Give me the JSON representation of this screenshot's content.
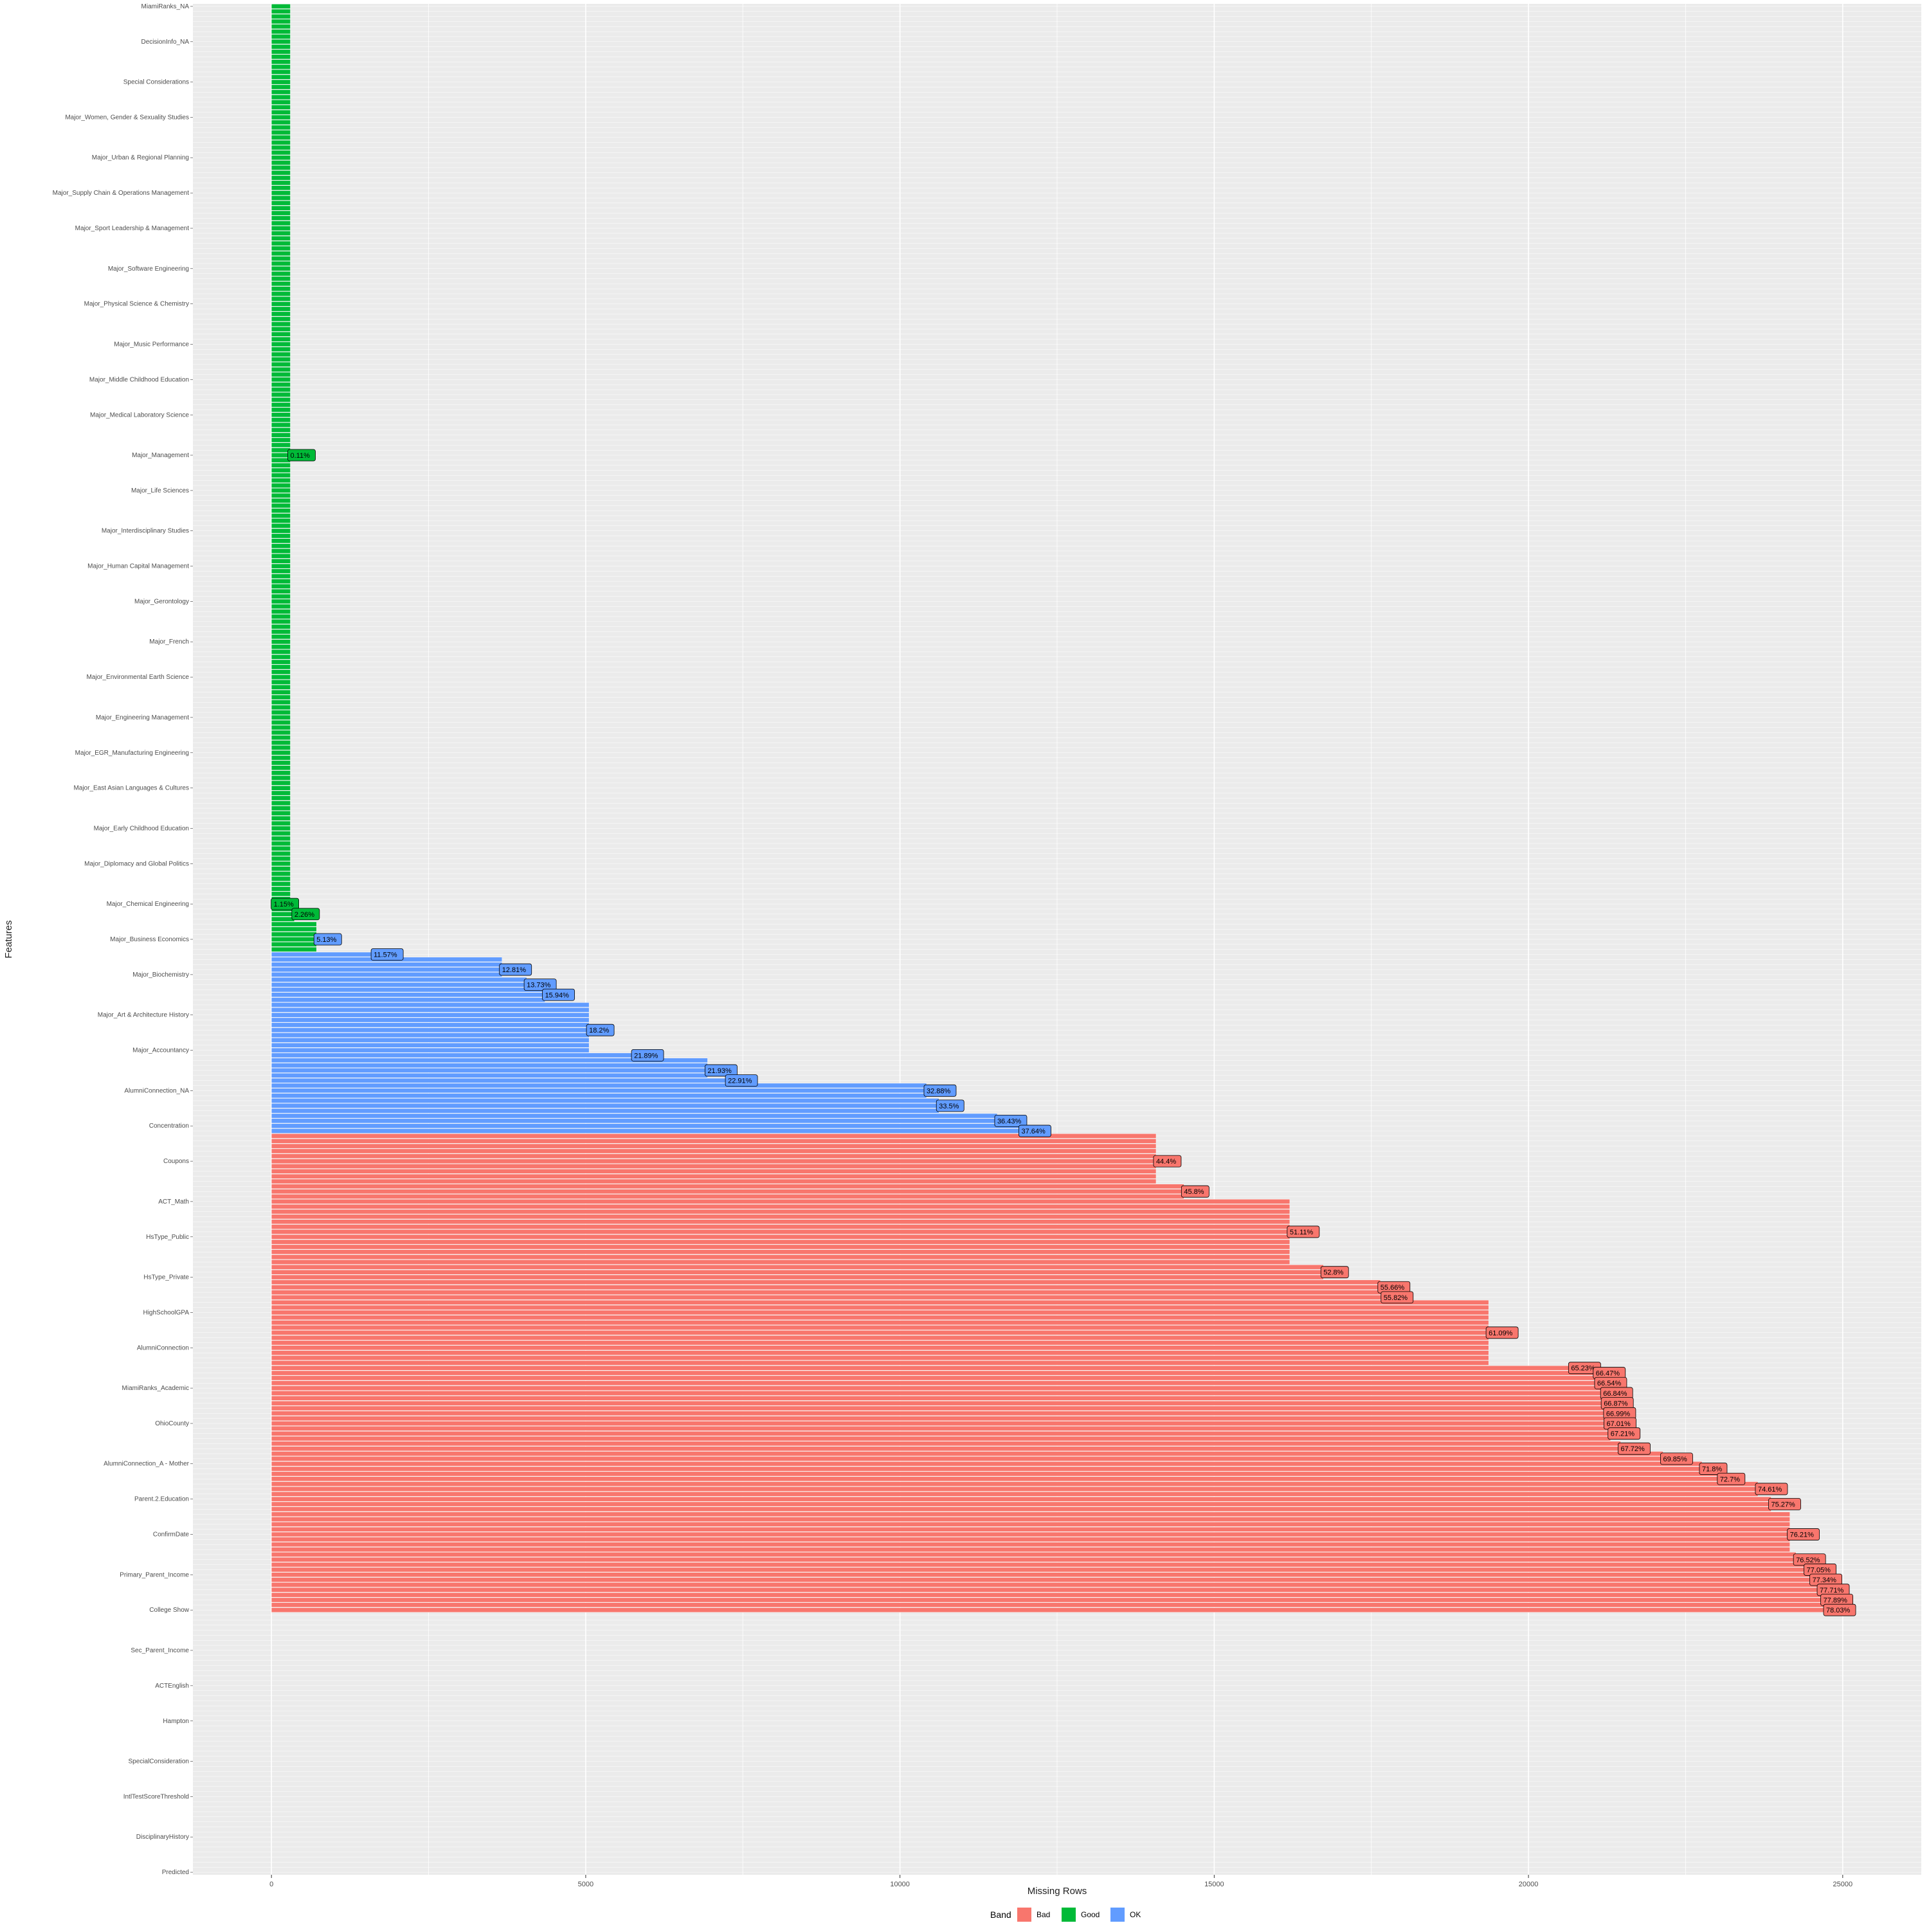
{
  "chart_data": {
    "type": "bar",
    "orientation": "horizontal",
    "xlabel": "Missing Rows",
    "ylabel": "Features",
    "x_ticks": [
      "0",
      "5000",
      "10000",
      "15000",
      "20000",
      "25000"
    ],
    "xlim": [
      -1250,
      26250
    ],
    "total_rows": 31700,
    "grid": true,
    "legend": {
      "title": "Band",
      "position": "bottom",
      "entries": [
        {
          "name": "Bad",
          "color": "#F8766D"
        },
        {
          "name": "Good",
          "color": "#00BA38"
        },
        {
          "name": "OK",
          "color": "#619CFF"
        }
      ]
    },
    "feature_count": 371,
    "visible_feature_labels": [
      "MiamiRanks_NA",
      "DecisionInfo_NA",
      "Special Considerations",
      "Major_Women, Gender & Sexuality Studies",
      "Major_Urban & Regional Planning",
      "Major_Supply Chain & Operations Management",
      "Major_Sport Leadership & Management",
      "Major_Software Engineering",
      "Major_Physical Science & Chemistry",
      "Major_Music Performance",
      "Major_Middle Childhood Education",
      "Major_Medical Laboratory Science",
      "Major_Management",
      "Major_Life Sciences",
      "Major_Interdisciplinary Studies",
      "Major_Human Capital Management",
      "Major_Gerontology",
      "Major_French",
      "Major_Environmental Earth Science",
      "Major_Engineering Management",
      "Major_EGR_Manufacturing Engineering",
      "Major_East Asian Languages & Cultures",
      "Major_Early Childhood Education",
      "Major_Diplomacy and Global Politics",
      "Major_Chemical Engineering",
      "Major_Business Economics",
      "Major_Biochemistry",
      "Major_Art & Architecture History",
      "Major_Accountancy",
      "AlumniConnection_NA",
      "Concentration",
      "Coupons",
      "ACT_Math",
      "HsType_Public",
      "HsType_Private",
      "HighSchoolGPA",
      "AlumniConnection",
      "MiamiRanks_Academic",
      "OhioCounty",
      "AlumniConnection_A - Mother",
      "Parent.2.Education",
      "ConfirmDate",
      "Primary_Parent_Income",
      "College Show",
      "Sec_Parent_Income",
      "ACTEnglish",
      "Hampton",
      "SpecialConsideration",
      "IntlTestScoreThreshold",
      "DisciplinaryHistory",
      "Predicted"
    ],
    "bar_labels": [
      {
        "text": "0.11%",
        "color": "green"
      },
      {
        "text": "1.15%",
        "color": "green"
      },
      {
        "text": "2.26%",
        "color": "green"
      },
      {
        "text": "5.13%",
        "color": "blue"
      },
      {
        "text": "11.57%",
        "color": "blue"
      },
      {
        "text": "12.81%",
        "color": "blue"
      },
      {
        "text": "13.73%",
        "color": "blue"
      },
      {
        "text": "15.94%",
        "color": "blue"
      },
      {
        "text": "18.2%",
        "color": "blue"
      },
      {
        "text": "21.89%",
        "color": "blue"
      },
      {
        "text": "21.93%",
        "color": "blue"
      },
      {
        "text": "22.91%",
        "color": "blue"
      },
      {
        "text": "32.88%",
        "color": "blue"
      },
      {
        "text": "33.5%",
        "color": "blue"
      },
      {
        "text": "36.43%",
        "color": "blue"
      },
      {
        "text": "37.64%",
        "color": "blue"
      },
      {
        "text": "44.4%",
        "color": "red"
      },
      {
        "text": "45.8%",
        "color": "red"
      },
      {
        "text": "51.11%",
        "color": "red"
      },
      {
        "text": "52.8%",
        "color": "red"
      },
      {
        "text": "55.66%",
        "color": "red"
      },
      {
        "text": "55.82%",
        "color": "red"
      },
      {
        "text": "61.09%",
        "color": "red"
      },
      {
        "text": "65.23%",
        "color": "red"
      },
      {
        "text": "66.47%",
        "color": "red"
      },
      {
        "text": "66.54%",
        "color": "red"
      },
      {
        "text": "66.84%",
        "color": "red"
      },
      {
        "text": "66.87%",
        "color": "red"
      },
      {
        "text": "66.99%",
        "color": "red"
      },
      {
        "text": "67.01%",
        "color": "red"
      },
      {
        "text": "67.21%",
        "color": "red"
      },
      {
        "text": "67.72%",
        "color": "red"
      },
      {
        "text": "69.85%",
        "color": "red"
      },
      {
        "text": "71.8%",
        "color": "red"
      },
      {
        "text": "72.7%",
        "color": "red"
      },
      {
        "text": "74.61%",
        "color": "red"
      },
      {
        "text": "75.27%",
        "color": "red"
      },
      {
        "text": "76.21%",
        "color": "red"
      },
      {
        "text": "76.52%",
        "color": "red"
      },
      {
        "text": "77.05%",
        "color": "red"
      },
      {
        "text": "77.34%",
        "color": "red"
      },
      {
        "text": "77.71%",
        "color": "red"
      },
      {
        "text": "77.89%",
        "color": "red"
      },
      {
        "text": "78.03%",
        "color": "red"
      }
    ],
    "segments": [
      {
        "band": "Good",
        "count": 178,
        "value": 300
      },
      {
        "band": "Good",
        "count": 1,
        "value": 35
      },
      {
        "band": "Good",
        "count": 3,
        "value": 365
      },
      {
        "band": "Good",
        "count": 6,
        "value": 717
      },
      {
        "band": "OK",
        "count": 1,
        "value": 1626
      },
      {
        "band": "OK",
        "count": 4,
        "value": 3668
      },
      {
        "band": "OK",
        "count": 2,
        "value": 4061
      },
      {
        "band": "OK",
        "count": 3,
        "value": 4352
      },
      {
        "band": "OK",
        "count": 10,
        "value": 5053
      },
      {
        "band": "OK",
        "count": 1,
        "value": 5769
      },
      {
        "band": "OK",
        "count": 4,
        "value": 6939
      },
      {
        "band": "OK",
        "count": 1,
        "value": 7263
      },
      {
        "band": "OK",
        "count": 3,
        "value": 10423
      },
      {
        "band": "OK",
        "count": 3,
        "value": 10620
      },
      {
        "band": "OK",
        "count": 2,
        "value": 11548
      },
      {
        "band": "OK",
        "count": 2,
        "value": 11932
      },
      {
        "band": "Bad",
        "count": 10,
        "value": 14075
      },
      {
        "band": "Bad",
        "count": 3,
        "value": 14519
      },
      {
        "band": "Bad",
        "count": 13,
        "value": 16202
      },
      {
        "band": "Bad",
        "count": 3,
        "value": 16738
      },
      {
        "band": "Bad",
        "count": 2,
        "value": 17644
      },
      {
        "band": "Bad",
        "count": 2,
        "value": 17695
      },
      {
        "band": "Bad",
        "count": 13,
        "value": 19366
      },
      {
        "band": "Bad",
        "count": 1,
        "value": 20678
      },
      {
        "band": "Bad",
        "count": 1,
        "value": 21071
      },
      {
        "band": "Bad",
        "count": 2,
        "value": 21093
      },
      {
        "band": "Bad",
        "count": 2,
        "value": 21188
      },
      {
        "band": "Bad",
        "count": 2,
        "value": 21198
      },
      {
        "band": "Bad",
        "count": 2,
        "value": 21236
      },
      {
        "band": "Bad",
        "count": 2,
        "value": 21242
      },
      {
        "band": "Bad",
        "count": 3,
        "value": 21306
      },
      {
        "band": "Bad",
        "count": 2,
        "value": 21467
      },
      {
        "band": "Bad",
        "count": 2,
        "value": 22142
      },
      {
        "band": "Bad",
        "count": 2,
        "value": 22761
      },
      {
        "band": "Bad",
        "count": 2,
        "value": 23046
      },
      {
        "band": "Bad",
        "count": 3,
        "value": 23651
      },
      {
        "band": "Bad",
        "count": 3,
        "value": 23861
      },
      {
        "band": "Bad",
        "count": 8,
        "value": 24159
      },
      {
        "band": "Bad",
        "count": 2,
        "value": 24257
      },
      {
        "band": "Bad",
        "count": 2,
        "value": 24425
      },
      {
        "band": "Bad",
        "count": 2,
        "value": 24517
      },
      {
        "band": "Bad",
        "count": 2,
        "value": 24634
      },
      {
        "band": "Bad",
        "count": 2,
        "value": 24691
      },
      {
        "band": "Bad",
        "count": 2,
        "value": 24736
      }
    ]
  }
}
